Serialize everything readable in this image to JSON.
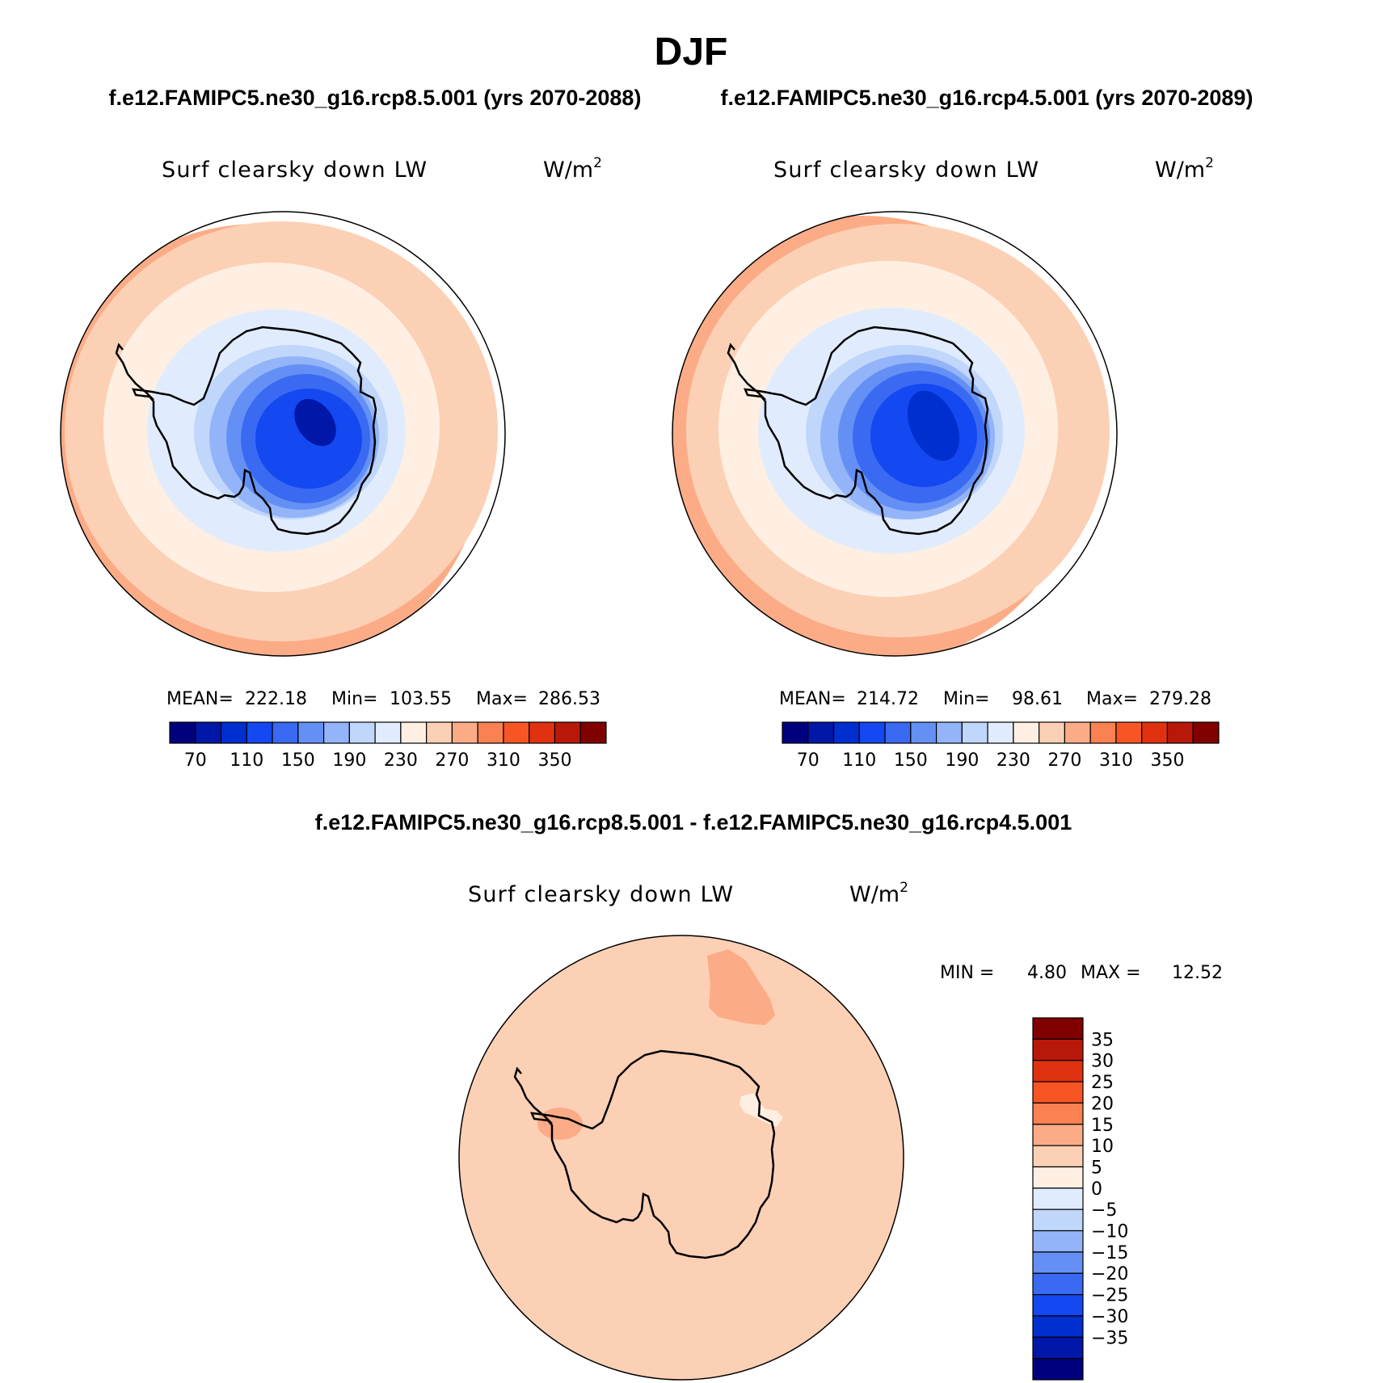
{
  "figure": {
    "season": "DJF",
    "panel_a_run": "f.e12.FAMIPC5.ne30_g16.rcp8.5.001 (yrs 2070-2088)",
    "panel_b_run": "f.e12.FAMIPC5.ne30_g16.rcp4.5.001 (yrs 2070-2089)",
    "diff_title": "f.e12.FAMIPC5.ne30_g16.rcp8.5.001 - f.e12.FAMIPC5.ne30_g16.rcp4.5.001"
  },
  "variable": {
    "long_name": "Surf clearsky down LW",
    "units_base": "W/m",
    "units_sup": "2"
  },
  "panel_a": {
    "mean_label": "MEAN=",
    "mean": "222.18",
    "min_label": "Min=",
    "min": "103.55",
    "max_label": "Max=",
    "max": "286.53"
  },
  "panel_b": {
    "mean_label": "MEAN=",
    "mean": "214.72",
    "min_label": "Min=",
    "min": "98.61",
    "max_label": "Max=",
    "max": "279.28"
  },
  "panel_diff": {
    "min_label": "MIN =",
    "min": "4.80",
    "max_label": "MAX =",
    "max": "12.52"
  },
  "colors": {
    "abs_scale": [
      "#00007f",
      "#0017a8",
      "#002fd0",
      "#1448f0",
      "#3a6af2",
      "#6490f5",
      "#93b4f8",
      "#c0d6fb",
      "#e0ecfd",
      "#feefe2",
      "#fcd0b5",
      "#fbac86",
      "#f98152",
      "#f85525",
      "#e03210",
      "#b8180a",
      "#800000"
    ],
    "diff_scale": [
      "#00007f",
      "#0017a8",
      "#002fd0",
      "#1448f0",
      "#3a6af2",
      "#6490f5",
      "#93b4f8",
      "#c0d6fb",
      "#e0ecfd",
      "#feefe2",
      "#fcd0b5",
      "#fbac86",
      "#f98152",
      "#f85525",
      "#e03210",
      "#b8180a",
      "#800000"
    ]
  },
  "chart_data": [
    {
      "type": "heatmap",
      "projection": "south polar stereographic",
      "title": "f.e12.FAMIPC5.ne30_g16.rcp8.5.001 (yrs 2070-2088)",
      "field": "Surf clearsky down LW",
      "units": "W/m2",
      "mean": 222.18,
      "min": 103.55,
      "max": 286.53,
      "colorbar_levels": [
        70,
        90,
        110,
        130,
        150,
        170,
        190,
        210,
        230,
        250,
        270,
        290,
        310,
        330,
        350
      ],
      "colorbar_tick_labels": [
        "70",
        "110",
        "150",
        "190",
        "230",
        "270",
        "310",
        "350"
      ],
      "contour_rings_outer_to_inner": [
        290,
        270,
        250,
        230,
        210,
        190,
        170,
        150,
        130,
        110
      ]
    },
    {
      "type": "heatmap",
      "projection": "south polar stereographic",
      "title": "f.e12.FAMIPC5.ne30_g16.rcp4.5.001 (yrs 2070-2089)",
      "field": "Surf clearsky down LW",
      "units": "W/m2",
      "mean": 214.72,
      "min": 98.61,
      "max": 279.28,
      "colorbar_levels": [
        70,
        90,
        110,
        130,
        150,
        170,
        190,
        210,
        230,
        250,
        270,
        290,
        310,
        330,
        350
      ],
      "colorbar_tick_labels": [
        "70",
        "110",
        "150",
        "190",
        "230",
        "270",
        "310",
        "350"
      ],
      "contour_rings_outer_to_inner": [
        270,
        250,
        230,
        210,
        190,
        170,
        150,
        130,
        110
      ]
    },
    {
      "type": "heatmap",
      "projection": "south polar stereographic",
      "title": "f.e12.FAMIPC5.ne30_g16.rcp8.5.001 - f.e12.FAMIPC5.ne30_g16.rcp4.5.001",
      "field": "Surf clearsky down LW",
      "units": "W/m2",
      "min": 4.8,
      "max": 12.52,
      "colorbar_levels": [
        -40,
        -35,
        -30,
        -25,
        -20,
        -15,
        -10,
        -5,
        0,
        5,
        10,
        15,
        20,
        25,
        30,
        35,
        40
      ],
      "colorbar_tick_labels": [
        "35",
        "30",
        "25",
        "20",
        "15",
        "10",
        "5",
        "0",
        "−5",
        "−10",
        "−15",
        "−20",
        "−25",
        "−30",
        "−35"
      ]
    }
  ]
}
